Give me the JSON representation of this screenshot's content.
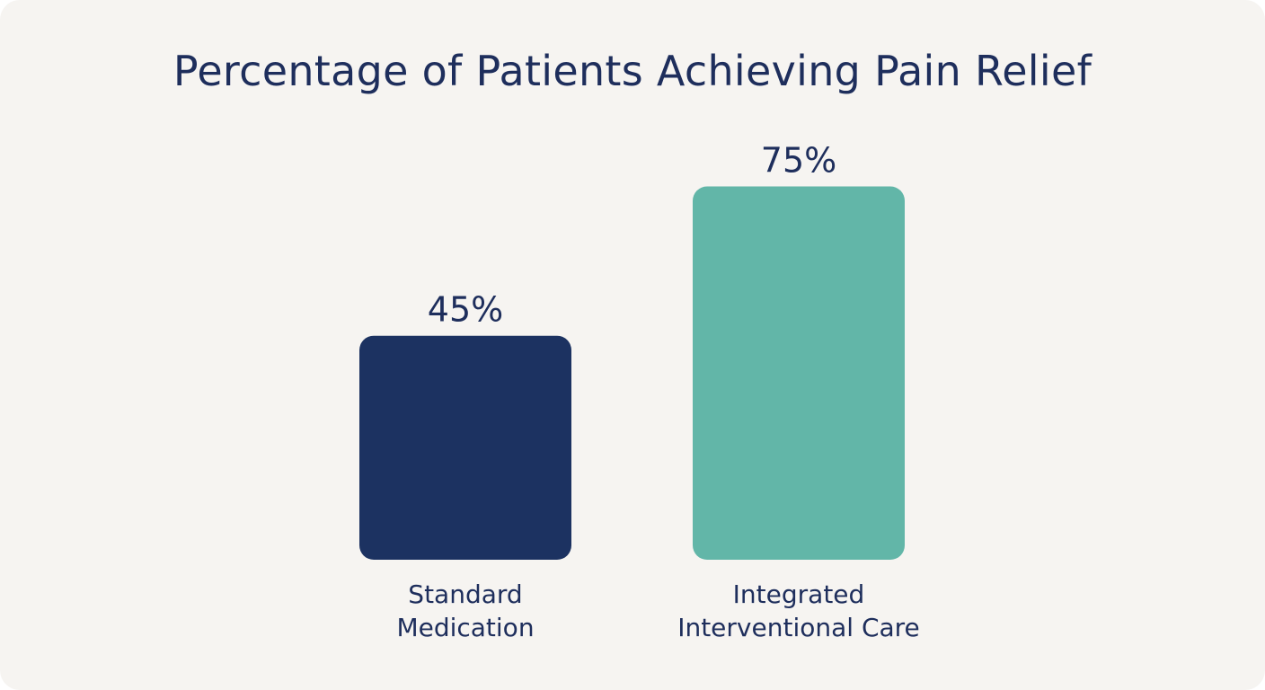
{
  "chart_data": {
    "type": "bar",
    "title": "Percentage of Patients Achieving Pain Relief",
    "xlabel": "",
    "ylabel": "",
    "categories": [
      [
        "Standard",
        "Medication"
      ],
      [
        "Integrated",
        "Interventional Care"
      ]
    ],
    "values": [
      45,
      75
    ],
    "value_labels": [
      "45%",
      "75%"
    ],
    "ylim": [
      0,
      100
    ],
    "grid": false,
    "legend": "none"
  },
  "colors": {
    "background": "#f6f4f1",
    "text": "#1e2e5c",
    "bars": [
      "#1c3261",
      "#62b6a8"
    ]
  }
}
